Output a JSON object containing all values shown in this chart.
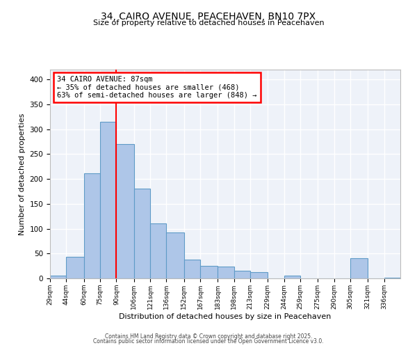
{
  "title_line1": "34, CAIRO AVENUE, PEACEHAVEN, BN10 7PX",
  "title_line2": "Size of property relative to detached houses in Peacehaven",
  "xlabel": "Distribution of detached houses by size in Peacehaven",
  "ylabel": "Number of detached properties",
  "bin_labels": [
    "29sqm",
    "44sqm",
    "60sqm",
    "75sqm",
    "90sqm",
    "106sqm",
    "121sqm",
    "136sqm",
    "152sqm",
    "167sqm",
    "183sqm",
    "198sqm",
    "213sqm",
    "229sqm",
    "244sqm",
    "259sqm",
    "275sqm",
    "290sqm",
    "305sqm",
    "321sqm",
    "336sqm"
  ],
  "bin_edges": [
    29,
    44,
    60,
    75,
    90,
    106,
    121,
    136,
    152,
    167,
    183,
    198,
    213,
    229,
    244,
    259,
    275,
    290,
    305,
    321,
    336,
    351
  ],
  "bar_heights": [
    5,
    44,
    211,
    315,
    270,
    180,
    110,
    93,
    38,
    25,
    24,
    16,
    12,
    0,
    5,
    0,
    0,
    0,
    40,
    0,
    2
  ],
  "bar_color": "#aec6e8",
  "bar_edge_color": "#5f9bc7",
  "red_line_x": 90,
  "ylim": [
    0,
    420
  ],
  "yticks": [
    0,
    50,
    100,
    150,
    200,
    250,
    300,
    350,
    400
  ],
  "annotation_title": "34 CAIRO AVENUE: 87sqm",
  "annotation_line2": "← 35% of detached houses are smaller (468)",
  "annotation_line3": "63% of semi-detached houses are larger (848) →",
  "footer_line1": "Contains HM Land Registry data © Crown copyright and database right 2025.",
  "footer_line2": "Contains public sector information licensed under the Open Government Licence v3.0.",
  "background_color": "#eef2f9",
  "grid_color": "#ffffff",
  "fig_bg_color": "#ffffff"
}
